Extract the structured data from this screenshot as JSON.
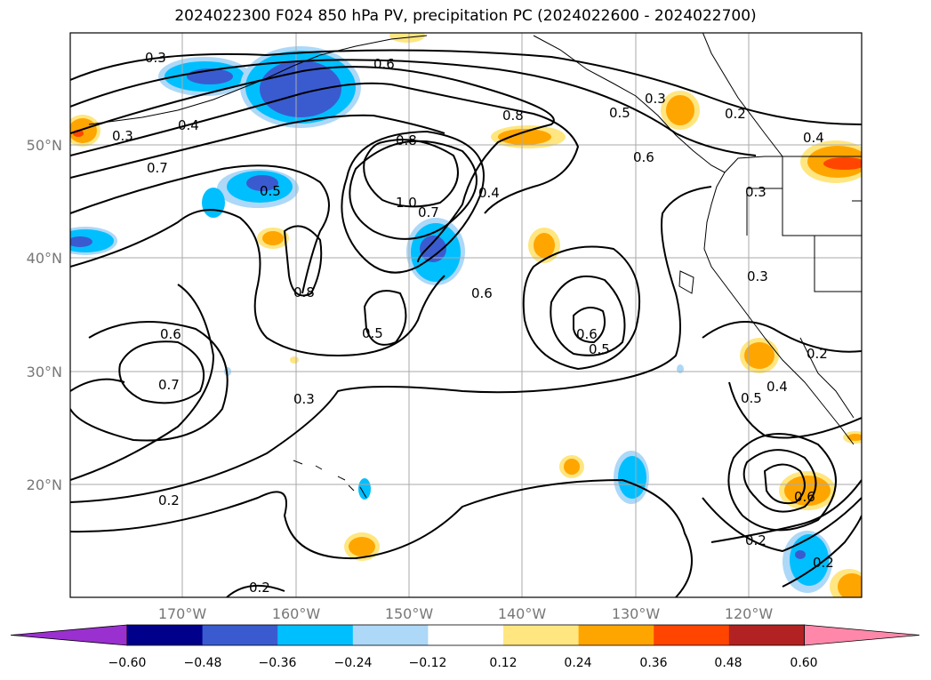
{
  "title": "2024022300 F024 850 hPa PV, precipitation PC (2024022600 - 2024022700)",
  "lon_ticks": [
    "170°W",
    "160°W",
    "150°W",
    "140°W",
    "130°W",
    "120°W"
  ],
  "lat_ticks": [
    "50°N",
    "40°N",
    "30°N",
    "20°N"
  ],
  "contour_labels": [
    "0.3",
    "0.6",
    "0.4",
    "0.3",
    "0.8",
    "0.8",
    "0.2",
    "0.3",
    "0.5",
    "0.4",
    "0.7",
    "0.5",
    "1.0",
    "0.7",
    "0.4",
    "0.6",
    "0.3",
    "0.8",
    "0.6",
    "0.5",
    "0.6",
    "0.5",
    "0.3",
    "0.6",
    "0.7",
    "0.3",
    "0.2",
    "0.5",
    "0.4",
    "0.2",
    "0.6",
    "0.2",
    "0.2",
    "0.2"
  ],
  "colorbar": {
    "ticks": [
      "−0.60",
      "−0.48",
      "−0.36",
      "−0.24",
      "−0.12",
      "0.12",
      "0.24",
      "0.36",
      "0.48",
      "0.60"
    ],
    "colors": [
      "#9b30d0",
      "#00008b",
      "#3a5bd0",
      "#00bfff",
      "#add8f7",
      "#ffffff",
      "#ffe680",
      "#ffa500",
      "#ff4500",
      "#b22222",
      "#ff88aa"
    ]
  }
}
